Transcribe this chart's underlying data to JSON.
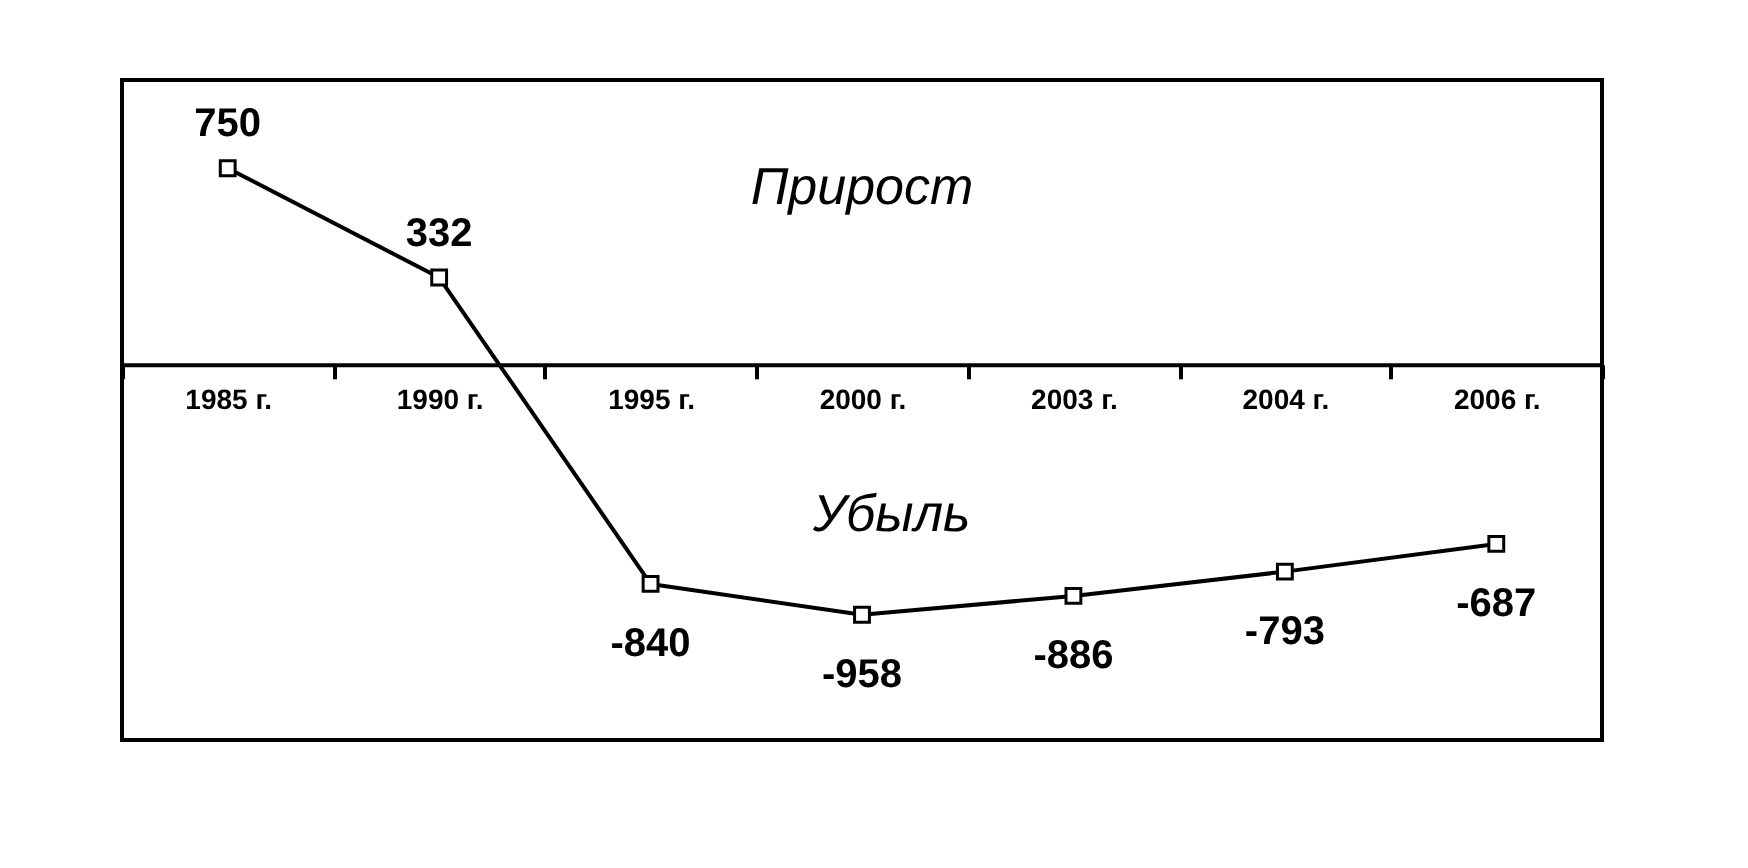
{
  "chart_data": {
    "type": "line",
    "categories": [
      "1985 г.",
      "1990 г.",
      "1995 г.",
      "2000 г.",
      "2003 г.",
      "2004 г.",
      "2006 г."
    ],
    "series": [
      {
        "color": "#000000",
        "values": [
          750,
          332,
          -840,
          -958,
          -886,
          -793,
          -687
        ]
      }
    ],
    "data_labels": true,
    "marker": "square",
    "line_style": "solid",
    "grid": false,
    "annotations": [
      "Прирост",
      "Убыль"
    ]
  }
}
